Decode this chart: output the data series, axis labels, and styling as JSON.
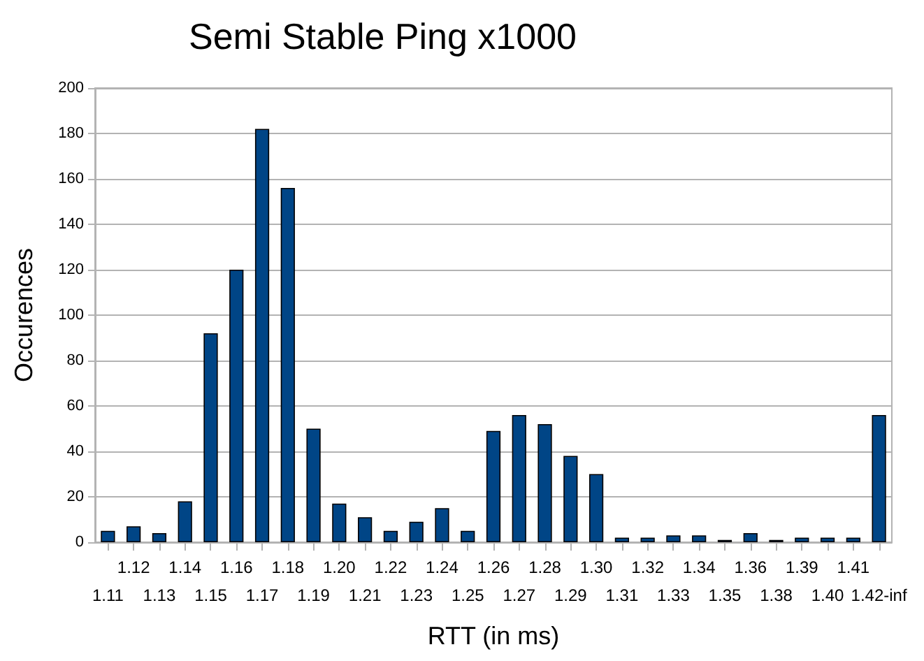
{
  "chart_data": {
    "type": "bar",
    "title": "Semi Stable Ping x1000",
    "xlabel": "RTT (in ms)",
    "ylabel": "Occurences",
    "categories": [
      "1.11",
      "1.12",
      "1.13",
      "1.14",
      "1.15",
      "1.16",
      "1.17",
      "1.18",
      "1.19",
      "1.20",
      "1.21",
      "1.22",
      "1.23",
      "1.24",
      "1.25",
      "1.26",
      "1.27",
      "1.28",
      "1.29",
      "1.30",
      "1.31",
      "1.32",
      "1.33",
      "1.34",
      "1.35",
      "1.36",
      "1.38",
      "1.39",
      "1.40",
      "1.41",
      "1.42-inf"
    ],
    "values": [
      5,
      7,
      4,
      18,
      92,
      120,
      182,
      156,
      50,
      17,
      11,
      5,
      9,
      15,
      5,
      49,
      56,
      52,
      38,
      30,
      2,
      2,
      3,
      3,
      1,
      4,
      1,
      2,
      2,
      2,
      56
    ],
    "color": "#004586",
    "ylim": [
      0,
      200
    ],
    "yticks": [
      0,
      20,
      40,
      60,
      80,
      100,
      120,
      140,
      160,
      180,
      200
    ],
    "grid": "y"
  }
}
